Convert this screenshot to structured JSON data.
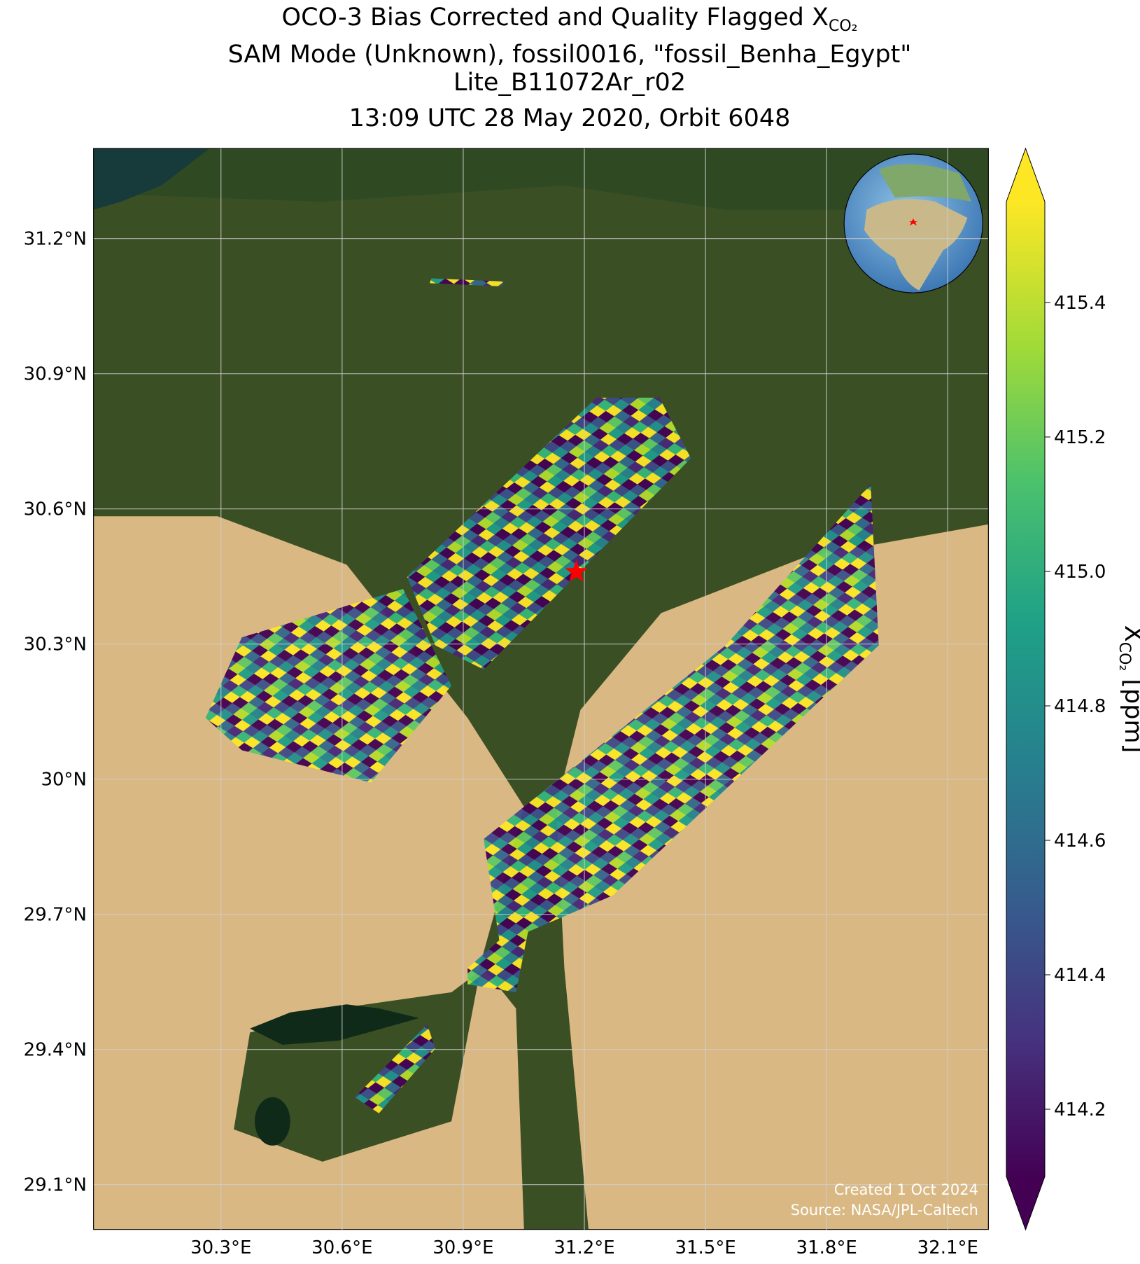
{
  "chart_data": {
    "type": "map",
    "title": [
      "OCO-3 Bias Corrected and Quality Flagged X",
      "SAM Mode (Unknown), fossil0016, \"fossil_Benha_Egypt\"",
      "Lite_B11072Ar_r02",
      "13:09 UTC 28 May 2020, Orbit 6048"
    ],
    "title_subscript": "CO₂",
    "xlim": [
      29.985,
      32.2
    ],
    "ylim": [
      29.0,
      31.4
    ],
    "xticks": [
      {
        "value": 30.3,
        "label": "30.3°E"
      },
      {
        "value": 30.6,
        "label": "30.6°E"
      },
      {
        "value": 30.9,
        "label": "30.9°E"
      },
      {
        "value": 31.2,
        "label": "31.2°E"
      },
      {
        "value": 31.5,
        "label": "31.5°E"
      },
      {
        "value": 31.8,
        "label": "31.8°E"
      },
      {
        "value": 32.1,
        "label": "32.1°E"
      }
    ],
    "yticks": [
      {
        "value": 29.1,
        "label": "29.1°N"
      },
      {
        "value": 29.4,
        "label": "29.4°N"
      },
      {
        "value": 29.7,
        "label": "29.7°N"
      },
      {
        "value": 30,
        "label": "30°N"
      },
      {
        "value": 30.3,
        "label": "30.3°N"
      },
      {
        "value": 30.6,
        "label": "30.6°N"
      },
      {
        "value": 30.9,
        "label": "30.9°N"
      },
      {
        "value": 31.2,
        "label": "31.2°N"
      }
    ],
    "grid": true,
    "target_site": {
      "lon": 31.18,
      "lat": 30.46,
      "color": "#ff0000"
    },
    "colorbar": {
      "label": "X",
      "label_subscript": "CO₂",
      "label_unit": "[ppm]",
      "clim": [
        414.1,
        415.55
      ],
      "ticks": [
        {
          "value": 414.2,
          "label": "414.2"
        },
        {
          "value": 414.4,
          "label": "414.4"
        },
        {
          "value": 414.6,
          "label": "414.6"
        },
        {
          "value": 414.8,
          "label": "414.8"
        },
        {
          "value": 415.0,
          "label": "415.0"
        },
        {
          "value": 415.2,
          "label": "415.2"
        },
        {
          "value": 415.4,
          "label": "415.4"
        }
      ]
    },
    "credits": [
      "Created 1 Oct 2024",
      "Source: NASA/JPL-Caltech"
    ]
  }
}
